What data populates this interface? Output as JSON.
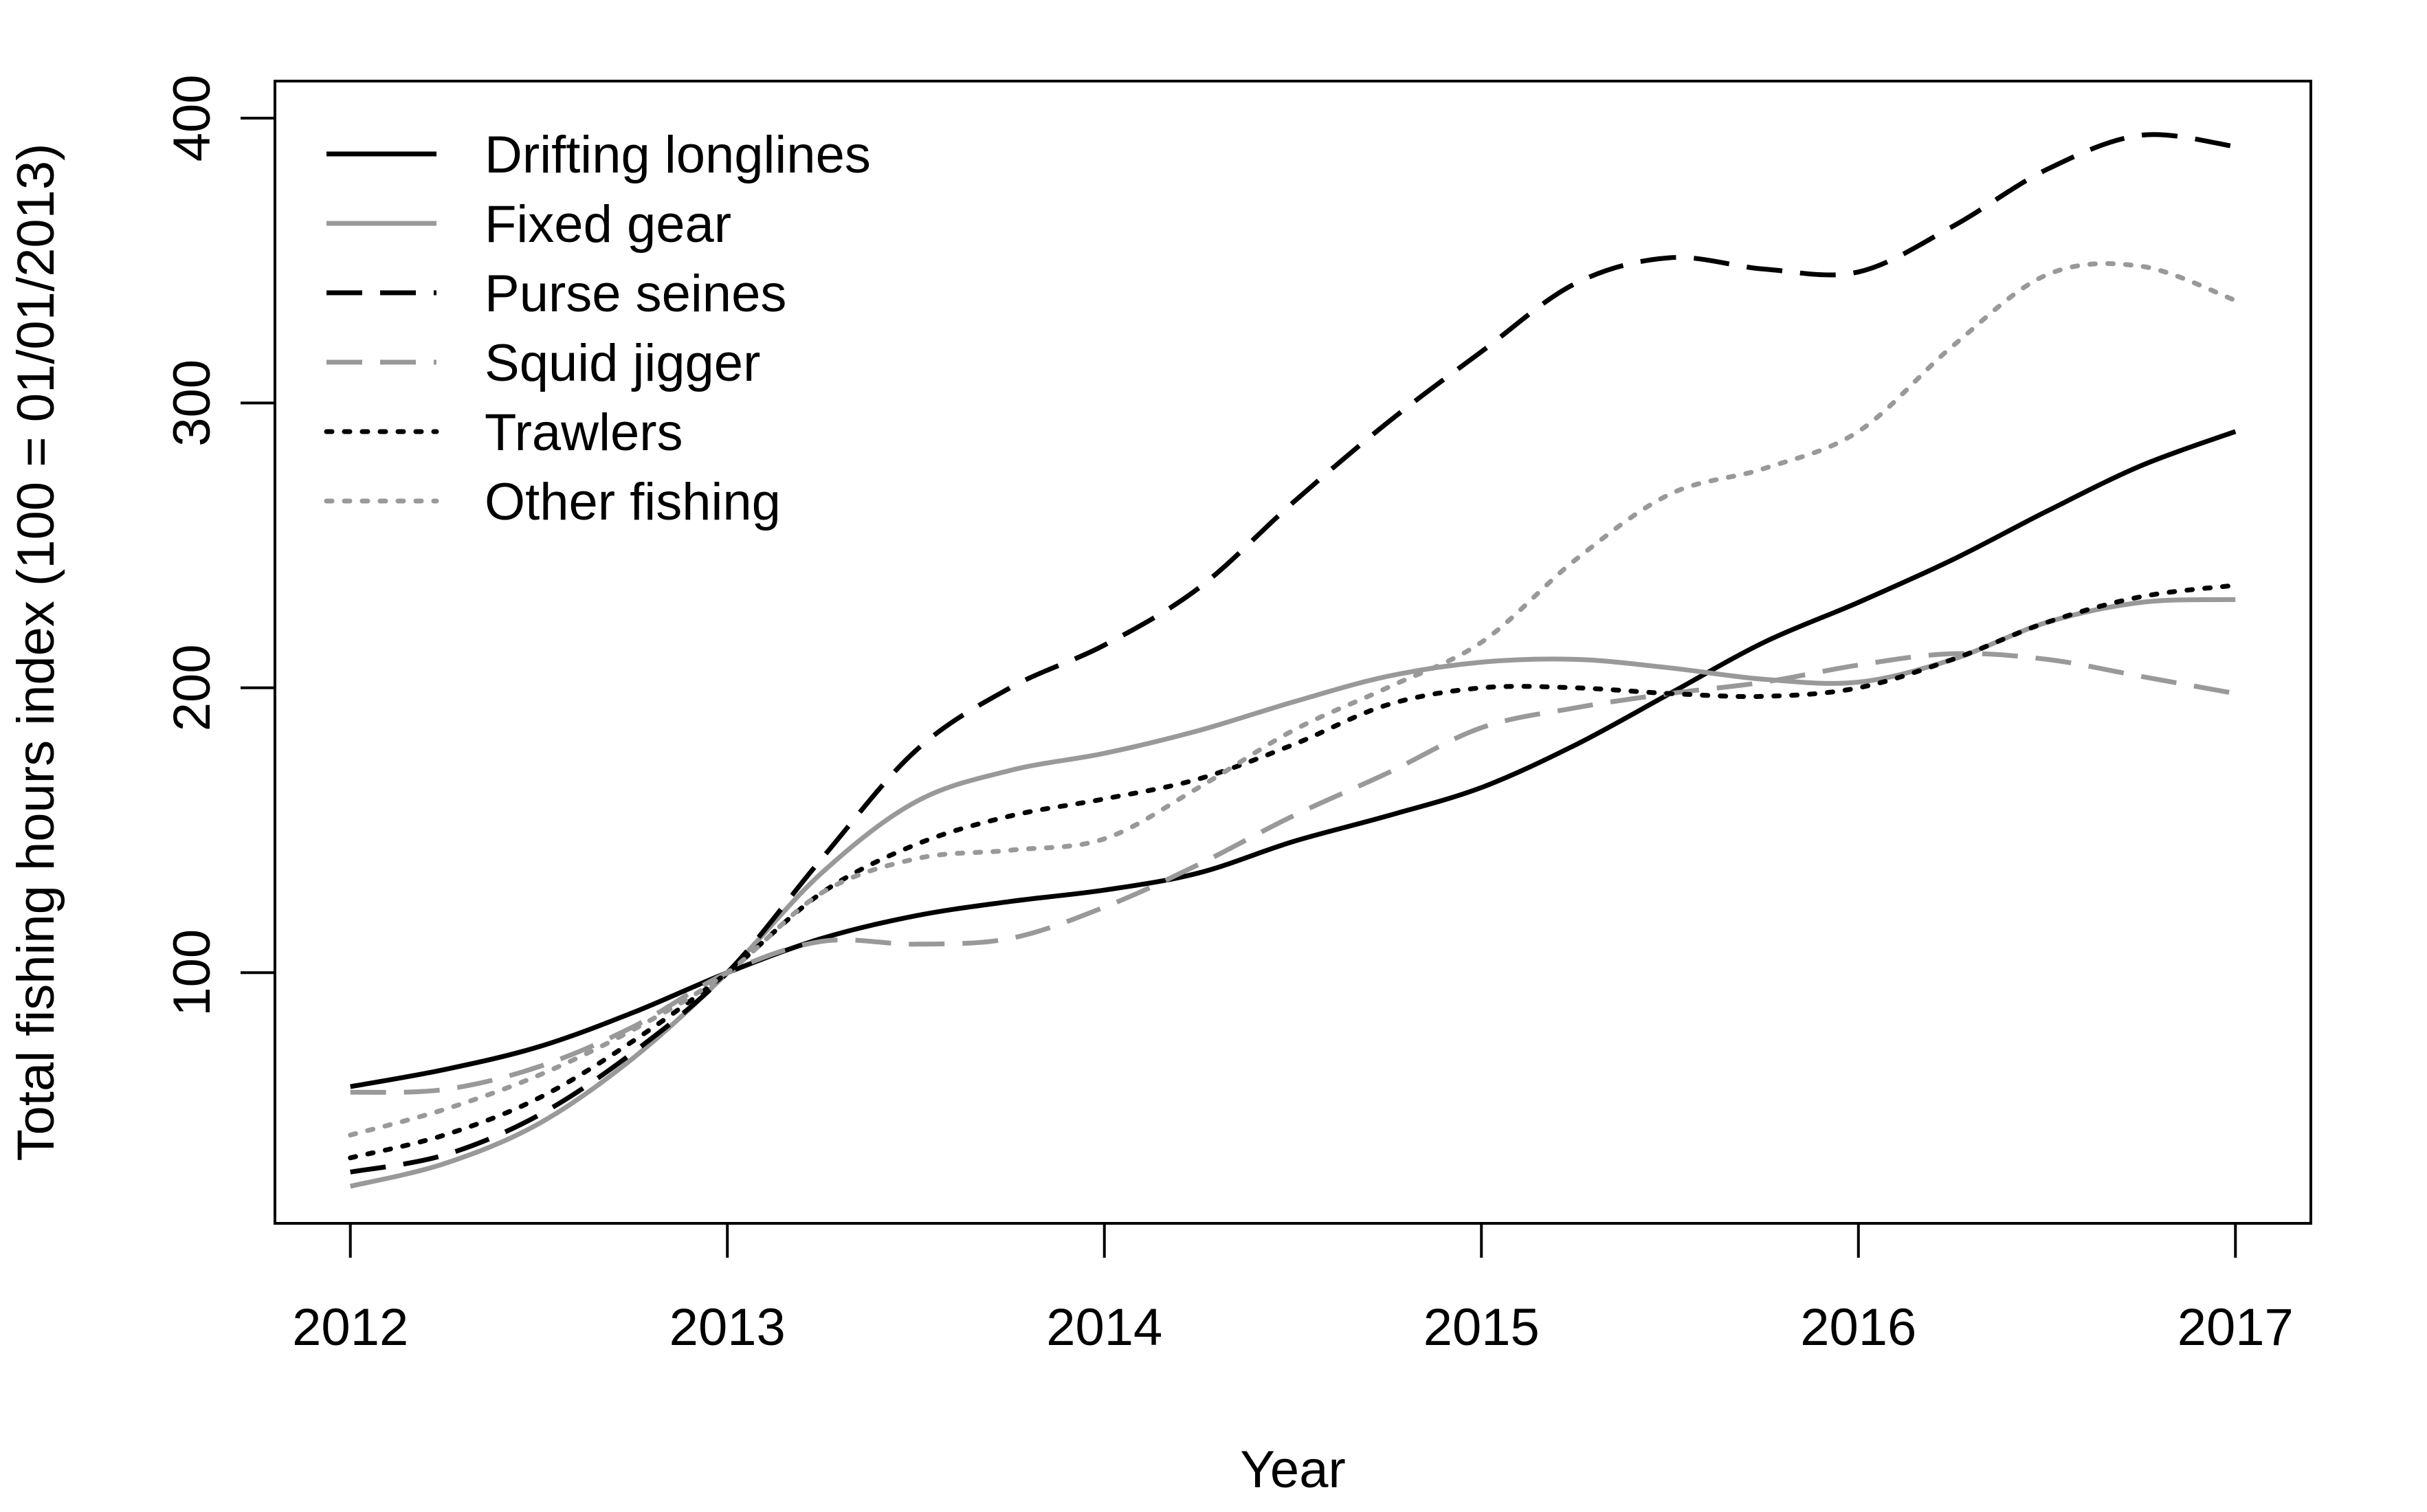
{
  "chart_data": {
    "type": "line",
    "xlabel": "Year",
    "ylabel": "Total fishing hours index (100 = 01/01/2013)",
    "xlim": [
      2011.8,
      2017.2
    ],
    "ylim": [
      12,
      413
    ],
    "xticks": [
      2012,
      2013,
      2014,
      2015,
      2016,
      2017
    ],
    "yticks": [
      100,
      200,
      300,
      400
    ],
    "legend_position": "top-left",
    "grid": false,
    "series": [
      {
        "name": "Drifting longlines",
        "color": "#000000",
        "dash": "solid",
        "x": [
          2012.0,
          2012.25,
          2012.5,
          2012.75,
          2013.0,
          2013.25,
          2013.5,
          2013.75,
          2014.0,
          2014.25,
          2014.5,
          2014.75,
          2015.0,
          2015.25,
          2015.5,
          2015.75,
          2016.0,
          2016.25,
          2016.5,
          2016.75,
          2017.0
        ],
        "y": [
          60,
          66,
          74,
          86,
          100,
          112,
          120,
          125,
          129,
          135,
          146,
          155,
          165,
          180,
          198,
          216,
          230,
          245,
          262,
          278,
          290
        ]
      },
      {
        "name": "Fixed gear",
        "color": "#999999",
        "dash": "solid",
        "x": [
          2012.0,
          2012.25,
          2012.5,
          2012.75,
          2013.0,
          2013.25,
          2013.5,
          2013.75,
          2014.0,
          2014.25,
          2014.5,
          2014.75,
          2015.0,
          2015.25,
          2015.5,
          2015.75,
          2016.0,
          2016.25,
          2016.5,
          2016.75,
          2017.0
        ],
        "y": [
          25,
          33,
          47,
          70,
          100,
          135,
          160,
          171,
          177,
          185,
          195,
          204,
          209,
          210,
          207,
          203,
          202,
          210,
          223,
          230,
          231
        ]
      },
      {
        "name": "Purse seines",
        "color": "#000000",
        "dash": "long",
        "x": [
          2012.0,
          2012.25,
          2012.5,
          2012.75,
          2013.0,
          2013.25,
          2013.5,
          2013.75,
          2014.0,
          2014.25,
          2014.5,
          2014.75,
          2015.0,
          2015.25,
          2015.5,
          2015.75,
          2016.0,
          2016.25,
          2016.5,
          2016.75,
          2017.0
        ],
        "y": [
          30,
          36,
          50,
          72,
          100,
          140,
          178,
          200,
          215,
          235,
          265,
          293,
          318,
          342,
          351,
          347,
          346,
          362,
          382,
          394,
          390
        ]
      },
      {
        "name": "Squid jigger",
        "color": "#999999",
        "dash": "long",
        "x": [
          2012.0,
          2012.25,
          2012.5,
          2012.75,
          2013.0,
          2013.25,
          2013.5,
          2013.75,
          2014.0,
          2014.25,
          2014.5,
          2014.75,
          2015.0,
          2015.25,
          2015.5,
          2015.75,
          2016.0,
          2016.25,
          2016.5,
          2016.75,
          2017.0
        ],
        "y": [
          58,
          59,
          67,
          81,
          100,
          111,
          110,
          112,
          123,
          138,
          155,
          170,
          186,
          193,
          198,
          202,
          208,
          212,
          210,
          204,
          198
        ]
      },
      {
        "name": "Trawlers",
        "color": "#000000",
        "dash": "dot",
        "x": [
          2012.0,
          2012.25,
          2012.5,
          2012.75,
          2013.0,
          2013.25,
          2013.5,
          2013.75,
          2014.0,
          2014.25,
          2014.5,
          2014.75,
          2015.0,
          2015.25,
          2015.5,
          2015.75,
          2016.0,
          2016.25,
          2016.5,
          2016.75,
          2017.0
        ],
        "y": [
          35,
          43,
          56,
          76,
          100,
          128,
          145,
          155,
          161,
          168,
          180,
          194,
          200,
          200,
          198,
          197,
          200,
          210,
          223,
          232,
          236
        ]
      },
      {
        "name": "Other fishing",
        "color": "#999999",
        "dash": "dot",
        "x": [
          2012.0,
          2012.25,
          2012.5,
          2012.75,
          2013.0,
          2013.25,
          2013.5,
          2013.75,
          2014.0,
          2014.25,
          2014.5,
          2014.75,
          2015.0,
          2015.25,
          2015.5,
          2015.75,
          2016.0,
          2016.25,
          2016.5,
          2016.75,
          2017.0
        ],
        "y": [
          43,
          52,
          64,
          80,
          100,
          128,
          140,
          143,
          147,
          165,
          185,
          200,
          216,
          245,
          268,
          277,
          290,
          320,
          345,
          348,
          336
        ]
      }
    ]
  }
}
